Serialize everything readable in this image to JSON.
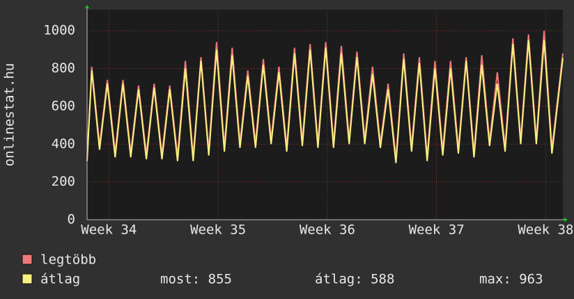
{
  "chart_data": {
    "type": "line",
    "y_label": "onlinestat.hu",
    "x": [
      0,
      0.3,
      0.8,
      1.3,
      1.8,
      2.3,
      2.8,
      3.3,
      3.8,
      4.3,
      4.8,
      5.3,
      5.8,
      6.3,
      6.8,
      7.3,
      7.8,
      8.3,
      8.8,
      9.3,
      9.8,
      10.3,
      10.8,
      11.3,
      11.8,
      12.3,
      12.8,
      13.3,
      13.8,
      14.3,
      14.8,
      15.3,
      15.8,
      16.3,
      16.8,
      17.3,
      17.8,
      18.3,
      18.8,
      19.3,
      19.8,
      20.3,
      20.8,
      21.3,
      21.8,
      22.3,
      22.8,
      23.3,
      23.8,
      24.3,
      24.8,
      25.3,
      25.8,
      26.3,
      26.8,
      27.3,
      27.8,
      28.3,
      28.8,
      29.3,
      29.8,
      30.5
    ],
    "series": [
      {
        "name": "legtöbb",
        "color": "#f07878",
        "values": [
          330,
          810,
          395,
          740,
          355,
          740,
          355,
          710,
          345,
          720,
          345,
          710,
          335,
          840,
          335,
          860,
          365,
          940,
          385,
          910,
          405,
          790,
          405,
          850,
          425,
          810,
          385,
          910,
          415,
          930,
          405,
          940,
          405,
          920,
          425,
          890,
          425,
          810,
          405,
          720,
          325,
          880,
          385,
          860,
          335,
          840,
          365,
          840,
          375,
          860,
          355,
          870,
          415,
          780,
          385,
          960,
          425,
          980,
          425,
          1000,
          375,
          880
        ]
      },
      {
        "name": "átlag",
        "color": "#f8f080",
        "values": [
          310,
          790,
          370,
          720,
          330,
          720,
          330,
          690,
          320,
          700,
          320,
          690,
          310,
          800,
          310,
          840,
          340,
          900,
          360,
          870,
          380,
          760,
          380,
          820,
          400,
          780,
          360,
          880,
          390,
          900,
          380,
          910,
          380,
          880,
          400,
          860,
          400,
          770,
          380,
          690,
          300,
          850,
          360,
          830,
          310,
          800,
          340,
          800,
          350,
          840,
          330,
          820,
          390,
          720,
          360,
          930,
          400,
          950,
          400,
          950,
          350,
          855
        ]
      }
    ],
    "stats": [
      "most: 855",
      "átlag: 588",
      "max: 963"
    ],
    "xlim": [
      0,
      30.5
    ],
    "xticks": [
      {
        "value": 1.4,
        "label": "Week 34"
      },
      {
        "value": 8.4,
        "label": "Week 35"
      },
      {
        "value": 15.4,
        "label": "Week 36"
      },
      {
        "value": 22.4,
        "label": "Week 37"
      },
      {
        "value": 29.4,
        "label": "Week 38"
      }
    ],
    "ylim": [
      0,
      1100
    ],
    "yticks": [
      0,
      200,
      400,
      600,
      800,
      1000
    ],
    "grid": true
  }
}
